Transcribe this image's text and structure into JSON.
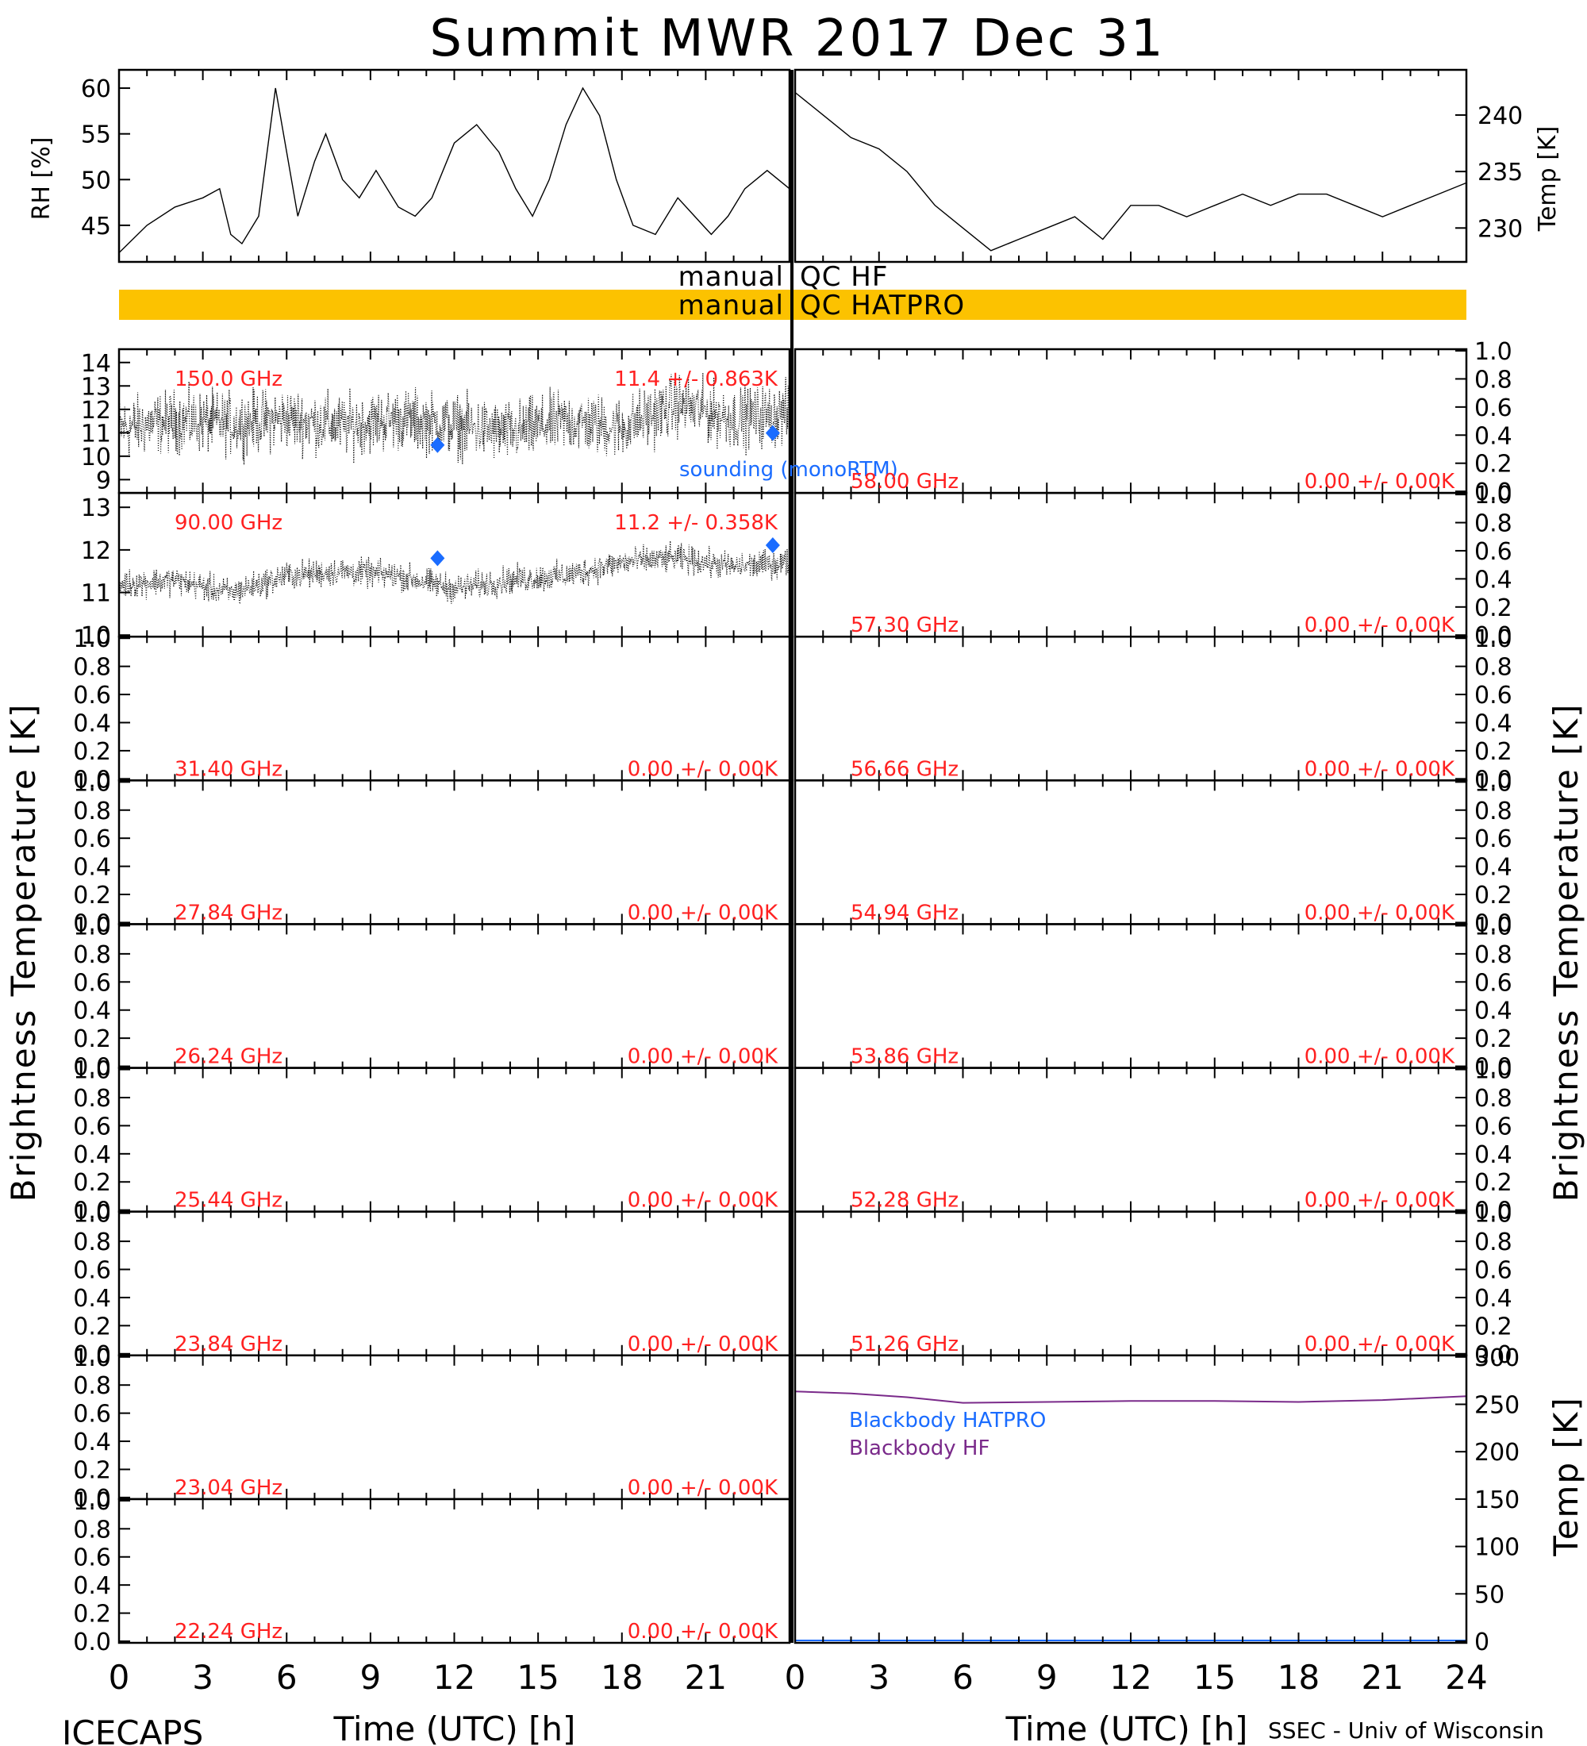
{
  "title": "Summit MWR 2017 Dec 31",
  "footer": {
    "left": "ICECAPS",
    "right": "SSEC - Univ of Wisconsin",
    "xlabel": "Time (UTC) [h]",
    "xticks": [
      "0",
      "3",
      "6",
      "9",
      "12",
      "15",
      "18",
      "21",
      "24"
    ]
  },
  "colors": {
    "annotation": "#ff2020",
    "sounding": "#1a6cff",
    "qc_bar": "#fcc200",
    "bb_hatpro": "#1a6cff",
    "bb_hf": "#7a2a8a",
    "trace": "#000000"
  },
  "qc": {
    "hf_label_left": "manual",
    "hf_label_right": "QC HF",
    "hatpro_label_left": "manual",
    "hatpro_label_right": "QC HATPRO",
    "hatpro_flagged": true
  },
  "legend": {
    "sounding": "sounding (monoRTM)",
    "bb_hatpro": "Blackbody HATPRO",
    "bb_hf": "Blackbody HF"
  },
  "ylabels": {
    "rh": "RH [%]",
    "temp": "Temp [K]",
    "brightness": "Brightness Temperature [K]",
    "bb_temp": "Temp [K]"
  },
  "chart_data": [
    {
      "type": "line",
      "name": "RH",
      "ylabel": "RH [%]",
      "xlim": [
        0,
        12
      ],
      "ylim": [
        41,
        62
      ],
      "yticks": [
        45,
        50,
        55,
        60
      ],
      "x": [
        0,
        0.5,
        1,
        1.5,
        1.8,
        2,
        2.2,
        2.5,
        2.8,
        3.0,
        3.2,
        3.5,
        3.7,
        4,
        4.3,
        4.6,
        5,
        5.3,
        5.6,
        6,
        6.4,
        6.8,
        7.1,
        7.4,
        7.7,
        8,
        8.3,
        8.6,
        8.9,
        9.2,
        9.6,
        10,
        10.3,
        10.6,
        10.9,
        11.2,
        11.6,
        12
      ],
      "y": [
        42,
        45,
        47,
        48,
        49,
        44,
        43,
        46,
        60,
        53,
        46,
        52,
        55,
        50,
        48,
        51,
        47,
        46,
        48,
        54,
        56,
        53,
        49,
        46,
        50,
        56,
        60,
        57,
        50,
        45,
        44,
        48,
        46,
        44,
        46,
        49,
        51,
        49
      ]
    },
    {
      "type": "line",
      "name": "Temp",
      "ylabel": "Temp [K]",
      "xlim": [
        12,
        24
      ],
      "ylim": [
        227,
        244
      ],
      "yticks": [
        230,
        235,
        240
      ],
      "x": [
        12,
        12.5,
        13,
        13.5,
        14,
        14.5,
        15,
        15.5,
        16,
        16.5,
        17,
        17.5,
        18,
        18.5,
        19,
        19.5,
        20,
        20.5,
        21,
        21.5,
        22,
        22.5,
        23,
        23.5,
        24
      ],
      "y": [
        242,
        240,
        238,
        237,
        235,
        232,
        230,
        228,
        229,
        230,
        231,
        229,
        232,
        232,
        231,
        232,
        233,
        232,
        233,
        233,
        232,
        231,
        232,
        233,
        234
      ]
    },
    {
      "type": "scatter",
      "name": "150.0 GHz",
      "label": "150.0 GHz",
      "stat": "11.4 +/- 0.863K",
      "xlim": [
        0,
        12
      ],
      "ylim": [
        8.5,
        14.5
      ],
      "yticks": [
        9,
        10,
        11,
        12,
        13,
        14
      ],
      "x": [
        0,
        1,
        2,
        3,
        4,
        5,
        6,
        7,
        8,
        9,
        10,
        11,
        12
      ],
      "y": [
        11.2,
        11.5,
        11.4,
        11.6,
        11.3,
        11.6,
        11.3,
        11.0,
        11.5,
        11.2,
        12.2,
        11.6,
        11.8
      ],
      "sounding_x": [
        5.7,
        11.7
      ],
      "sounding_y": [
        10.5,
        11.0
      ]
    },
    {
      "type": "scatter",
      "name": "90.00 GHz",
      "label": "90.00 GHz",
      "stat": "11.2 +/- 0.358K",
      "xlim": [
        0,
        12
      ],
      "ylim": [
        10,
        13.3
      ],
      "yticks": [
        10,
        11,
        12,
        13
      ],
      "x": [
        0,
        1,
        2,
        3,
        4,
        5,
        6,
        7,
        8,
        9,
        10,
        11,
        12
      ],
      "y": [
        11.2,
        11.3,
        11.0,
        11.4,
        11.5,
        11.4,
        11.1,
        11.3,
        11.4,
        11.7,
        11.8,
        11.6,
        11.7
      ],
      "sounding_x": [
        5.7,
        11.7
      ],
      "sounding_y": [
        11.8,
        12.1
      ]
    },
    {
      "type": "scatter",
      "name": "31.40 GHz",
      "label": "31.40 GHz",
      "stat": "0.00 +/- 0.00K",
      "ylim": [
        0,
        1
      ],
      "x": [],
      "y": []
    },
    {
      "type": "scatter",
      "name": "27.84 GHz",
      "label": "27.84 GHz",
      "stat": "0.00 +/- 0.00K",
      "ylim": [
        0,
        1
      ],
      "x": [],
      "y": []
    },
    {
      "type": "scatter",
      "name": "26.24 GHz",
      "label": "26.24 GHz",
      "stat": "0.00 +/- 0.00K",
      "ylim": [
        0,
        1
      ],
      "x": [],
      "y": []
    },
    {
      "type": "scatter",
      "name": "25.44 GHz",
      "label": "25.44 GHz",
      "stat": "0.00 +/- 0.00K",
      "ylim": [
        0,
        1
      ],
      "x": [],
      "y": []
    },
    {
      "type": "scatter",
      "name": "23.84 GHz",
      "label": "23.84 GHz",
      "stat": "0.00 +/- 0.00K",
      "ylim": [
        0,
        1
      ],
      "x": [],
      "y": []
    },
    {
      "type": "scatter",
      "name": "23.04 GHz",
      "label": "23.04 GHz",
      "stat": "0.00 +/- 0.00K",
      "ylim": [
        0,
        1
      ],
      "x": [],
      "y": []
    },
    {
      "type": "scatter",
      "name": "22.24 GHz",
      "label": "22.24 GHz",
      "stat": "0.00 +/- 0.00K",
      "ylim": [
        0,
        1
      ],
      "x": [],
      "y": []
    },
    {
      "type": "scatter",
      "name": "58.00 GHz",
      "label": "58.00 GHz",
      "stat": "0.00 +/- 0.00K",
      "ylim": [
        0,
        1
      ],
      "x": [],
      "y": []
    },
    {
      "type": "scatter",
      "name": "57.30 GHz",
      "label": "57.30 GHz",
      "stat": "0.00 +/- 0.00K",
      "ylim": [
        0,
        1
      ],
      "x": [],
      "y": []
    },
    {
      "type": "scatter",
      "name": "56.66 GHz",
      "label": "56.66 GHz",
      "stat": "0.00 +/- 0.00K",
      "ylim": [
        0,
        1
      ],
      "x": [],
      "y": []
    },
    {
      "type": "scatter",
      "name": "54.94 GHz",
      "label": "54.94 GHz",
      "stat": "0.00 +/- 0.00K",
      "ylim": [
        0,
        1
      ],
      "x": [],
      "y": []
    },
    {
      "type": "scatter",
      "name": "53.86 GHz",
      "label": "53.86 GHz",
      "stat": "0.00 +/- 0.00K",
      "ylim": [
        0,
        1
      ],
      "x": [],
      "y": []
    },
    {
      "type": "scatter",
      "name": "52.28 GHz",
      "label": "52.28 GHz",
      "stat": "0.00 +/- 0.00K",
      "ylim": [
        0,
        1
      ],
      "x": [],
      "y": []
    },
    {
      "type": "scatter",
      "name": "51.26 GHz",
      "label": "51.26 GHz",
      "stat": "0.00 +/- 0.00K",
      "ylim": [
        0,
        1
      ],
      "x": [],
      "y": []
    },
    {
      "type": "line",
      "name": "Blackbody",
      "ylabel": "Temp [K]",
      "xlim": [
        0,
        24
      ],
      "ylim": [
        0,
        300
      ],
      "yticks": [
        0,
        50,
        100,
        150,
        200,
        250,
        300
      ],
      "series": [
        {
          "name": "Blackbody HF",
          "x": [
            0,
            2,
            4,
            6,
            9,
            12,
            15,
            18,
            21,
            24
          ],
          "y": [
            262,
            260,
            256,
            250,
            251,
            252,
            252,
            251,
            253,
            257
          ]
        },
        {
          "name": "Blackbody HATPRO",
          "x": [
            0,
            24
          ],
          "y": [
            0,
            0
          ]
        }
      ]
    }
  ]
}
